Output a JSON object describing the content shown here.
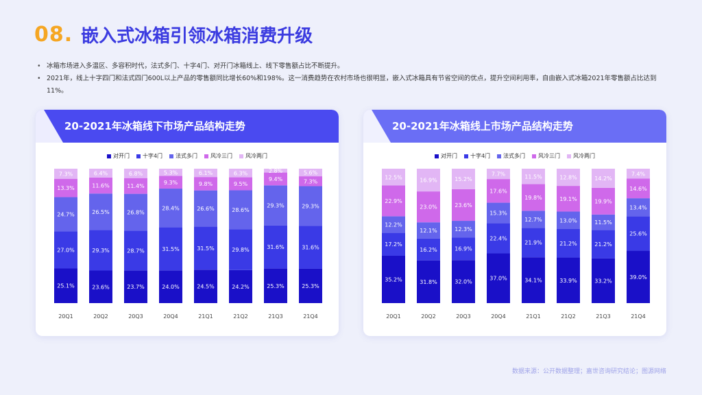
{
  "header": {
    "number": "08.",
    "title": "嵌入式冰箱引领冰箱消费升级"
  },
  "bullets": [
    "冰箱市场进入多温区、多容积时代，法式多门、十字4门、对开门冰箱线上、线下零售额占比不断提升。",
    "2021年，线上十字四门和法式四门600L以上产品的零售额同比增长60%和198%。这一消费趋势在农村市场也很明显，嵌入式冰箱具有节省空间的优点，提升空间利用率，自由嵌入式冰箱2021年零售额占比达到11%。"
  ],
  "bullet_symbol": "•",
  "footer": "数据来源：公开数据整理；嘉世咨询研究结论；图源网络",
  "colors": {
    "series": [
      "#1a10c8",
      "#3a3ae6",
      "#6464ec",
      "#cf69ea",
      "#e2b6f5"
    ]
  },
  "chart_data": [
    {
      "type": "bar",
      "stacked": true,
      "title": "20-2021年冰箱线下市场产品结构走势",
      "categories": [
        "20Q1",
        "20Q2",
        "20Q3",
        "20Q4",
        "21Q1",
        "21Q2",
        "21Q3",
        "21Q4"
      ],
      "legend_position": "top",
      "series": [
        {
          "name": "对开门",
          "values": [
            25.1,
            23.6,
            23.7,
            24.0,
            24.5,
            24.2,
            25.3,
            25.3
          ]
        },
        {
          "name": "十字4门",
          "values": [
            27.0,
            29.3,
            28.7,
            31.5,
            31.5,
            29.8,
            31.6,
            31.6
          ]
        },
        {
          "name": "法式多门",
          "values": [
            24.7,
            26.5,
            26.8,
            28.4,
            26.6,
            28.6,
            29.3,
            29.3
          ]
        },
        {
          "name": "风冷三门",
          "values": [
            13.3,
            11.6,
            11.4,
            9.3,
            9.8,
            9.5,
            9.4,
            7.3
          ]
        },
        {
          "name": "风冷两门",
          "values": [
            7.3,
            6.4,
            6.8,
            5.3,
            6.1,
            6.3,
            2.8,
            5.6
          ]
        }
      ]
    },
    {
      "type": "bar",
      "stacked": true,
      "title": "20-2021年冰箱线上市场产品结构走势",
      "categories": [
        "20Q1",
        "20Q2",
        "20Q3",
        "20Q4",
        "21Q1",
        "21Q2",
        "21Q3",
        "21Q4"
      ],
      "legend_position": "top",
      "series": [
        {
          "name": "对开门",
          "values": [
            35.2,
            31.8,
            32.0,
            37.0,
            34.1,
            33.9,
            33.2,
            39.0
          ]
        },
        {
          "name": "十字4门",
          "values": [
            17.2,
            16.2,
            16.9,
            22.4,
            21.9,
            21.2,
            21.2,
            25.6
          ]
        },
        {
          "name": "法式多门",
          "values": [
            12.2,
            12.1,
            12.3,
            15.3,
            12.7,
            13.0,
            11.5,
            13.4
          ]
        },
        {
          "name": "风冷三门",
          "values": [
            22.9,
            23.0,
            23.6,
            17.6,
            19.8,
            19.1,
            19.9,
            14.6
          ]
        },
        {
          "name": "风冷两门",
          "values": [
            12.5,
            16.9,
            15.2,
            7.7,
            11.5,
            12.8,
            14.2,
            7.4
          ]
        }
      ]
    }
  ]
}
